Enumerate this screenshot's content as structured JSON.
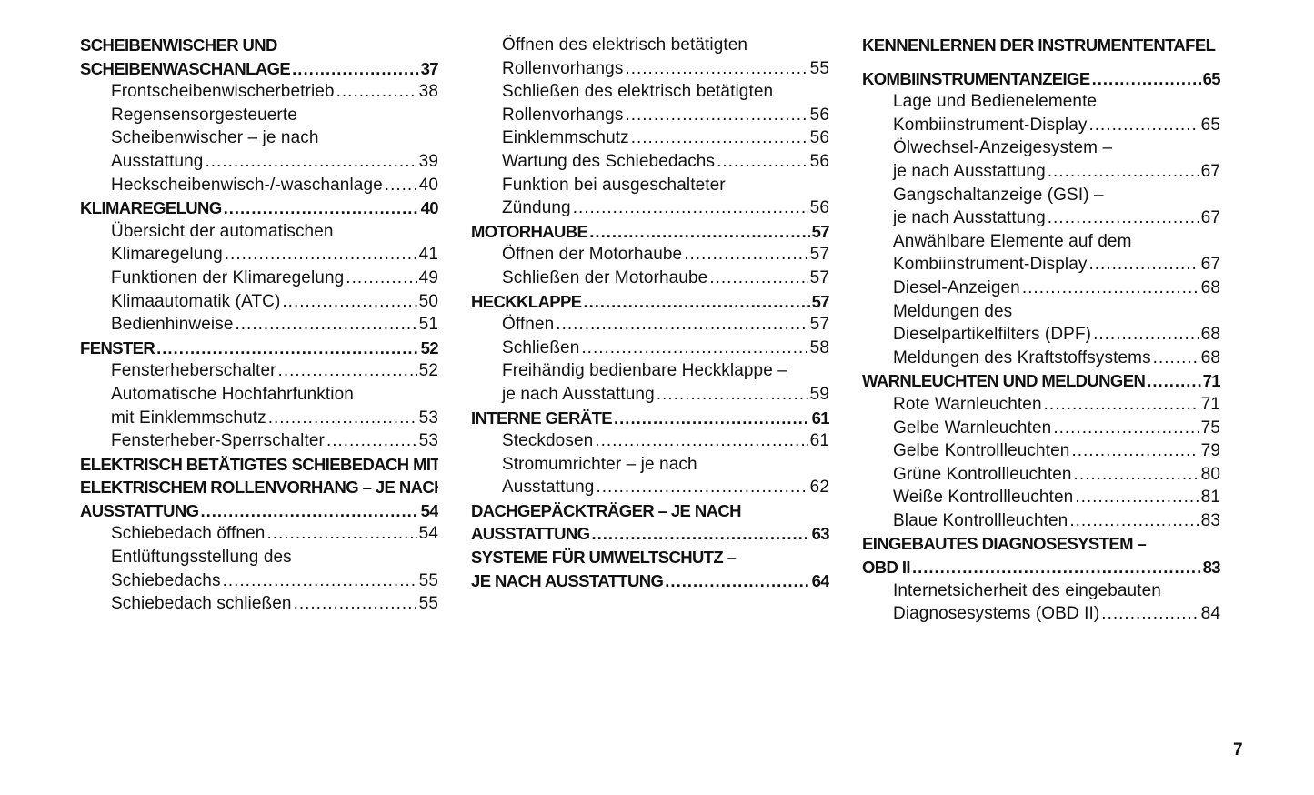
{
  "columns": [
    [
      {
        "t": "h",
        "lines": [
          "SCHEIBENWISCHER UND",
          "SCHEIBENWASCHANLAGE"
        ],
        "page": "37"
      },
      {
        "t": "e",
        "lines": [
          "Frontscheibenwischerbetrieb"
        ],
        "page": "38"
      },
      {
        "t": "e",
        "lines": [
          "Regensensorgesteuerte",
          "Scheibenwischer – je nach",
          "Ausstattung"
        ],
        "page": "39"
      },
      {
        "t": "e",
        "lines": [
          "Heckscheibenwisch-/-waschanlage"
        ],
        "page": "40"
      },
      {
        "t": "h",
        "lines": [
          "KLIMAREGELUNG"
        ],
        "page": "40"
      },
      {
        "t": "e",
        "lines": [
          "Übersicht der automatischen",
          "Klimaregelung"
        ],
        "page": "41"
      },
      {
        "t": "e",
        "lines": [
          "Funktionen der Klimaregelung"
        ],
        "page": "49"
      },
      {
        "t": "e",
        "lines": [
          "Klimaautomatik (ATC)"
        ],
        "page": "50"
      },
      {
        "t": "e",
        "lines": [
          "Bedienhinweise"
        ],
        "page": "51"
      },
      {
        "t": "h",
        "lines": [
          "FENSTER"
        ],
        "page": "52"
      },
      {
        "t": "e",
        "lines": [
          "Fensterheberschalter"
        ],
        "page": "52"
      },
      {
        "t": "e",
        "lines": [
          "Automatische Hochfahrfunktion",
          "mit Einklemmschutz"
        ],
        "page": "53"
      },
      {
        "t": "e",
        "lines": [
          "Fensterheber-Sperrschalter"
        ],
        "page": "53"
      },
      {
        "t": "h",
        "lines": [
          "ELEKTRISCH BETÄTIGTES SCHIEBEDACH MIT",
          "ELEKTRISCHEM ROLLENVORHANG – JE NACH",
          "AUSSTATTUNG"
        ],
        "page": "54"
      },
      {
        "t": "e",
        "lines": [
          "Schiebedach öffnen"
        ],
        "page": "54"
      },
      {
        "t": "e",
        "lines": [
          "Entlüftungsstellung des",
          "Schiebedachs"
        ],
        "page": "55"
      },
      {
        "t": "e",
        "lines": [
          "Schiebedach schließen"
        ],
        "page": "55"
      }
    ],
    [
      {
        "t": "e",
        "lines": [
          "Öffnen des elektrisch betätigten",
          "Rollenvorhangs"
        ],
        "page": "55"
      },
      {
        "t": "e",
        "lines": [
          "Schließen des elektrisch betätigten",
          "Rollenvorhangs"
        ],
        "page": "56"
      },
      {
        "t": "e",
        "lines": [
          "Einklemmschutz"
        ],
        "page": "56"
      },
      {
        "t": "e",
        "lines": [
          "Wartung des Schiebedachs"
        ],
        "page": "56"
      },
      {
        "t": "e",
        "lines": [
          "Funktion bei ausgeschalteter",
          "Zündung"
        ],
        "page": "56"
      },
      {
        "t": "h",
        "lines": [
          "MOTORHAUBE"
        ],
        "page": "57"
      },
      {
        "t": "e",
        "lines": [
          "Öffnen der Motorhaube"
        ],
        "page": "57"
      },
      {
        "t": "e",
        "lines": [
          "Schließen der Motorhaube"
        ],
        "page": "57"
      },
      {
        "t": "h",
        "lines": [
          "HECKKLAPPE"
        ],
        "page": "57"
      },
      {
        "t": "e",
        "lines": [
          "Öffnen"
        ],
        "page": "57"
      },
      {
        "t": "e",
        "lines": [
          "Schließen"
        ],
        "page": "58"
      },
      {
        "t": "e",
        "lines": [
          "Freihändig bedienbare Heckklappe –",
          "je nach Ausstattung"
        ],
        "page": "59"
      },
      {
        "t": "h",
        "lines": [
          "INTERNE GERÄTE"
        ],
        "page": "61"
      },
      {
        "t": "e",
        "lines": [
          "Steckdosen"
        ],
        "page": "61"
      },
      {
        "t": "e",
        "lines": [
          "Stromumrichter – je nach",
          "Ausstattung"
        ],
        "page": "62"
      },
      {
        "t": "h",
        "lines": [
          "DACHGEPÄCKTRÄGER – JE NACH",
          "AUSSTATTUNG"
        ],
        "page": "63"
      },
      {
        "t": "h",
        "lines": [
          "SYSTEME FÜR UMWELTSCHUTZ –",
          "JE NACH AUSSTATTUNG"
        ],
        "page": "64"
      }
    ],
    [
      {
        "t": "h",
        "lines": [
          "KENNENLERNEN DER INSTRUMENTENTAFEL"
        ],
        "page": "",
        "gap": true
      },
      {
        "t": "h",
        "lines": [
          "KOMBIINSTRUMENTANZEIGE"
        ],
        "page": "65"
      },
      {
        "t": "e",
        "lines": [
          "Lage und Bedienelemente",
          "Kombiinstrument-Display"
        ],
        "page": "65"
      },
      {
        "t": "e",
        "lines": [
          "Ölwechsel-Anzeigesystem –",
          "je nach Ausstattung"
        ],
        "page": "67"
      },
      {
        "t": "e",
        "lines": [
          "Gangschaltanzeige (GSI) –",
          "je nach Ausstattung"
        ],
        "page": "67"
      },
      {
        "t": "e",
        "lines": [
          "Anwählbare Elemente auf dem",
          "Kombiinstrument-Display"
        ],
        "page": "67"
      },
      {
        "t": "e",
        "lines": [
          "Diesel-Anzeigen"
        ],
        "page": "68"
      },
      {
        "t": "e",
        "lines": [
          "Meldungen des",
          "Dieselpartikelfilters (DPF)"
        ],
        "page": "68"
      },
      {
        "t": "e",
        "lines": [
          "Meldungen des Kraftstoffsystems"
        ],
        "page": "68"
      },
      {
        "t": "h",
        "lines": [
          "WARNLEUCHTEN UND MELDUNGEN"
        ],
        "page": "71"
      },
      {
        "t": "e",
        "lines": [
          "Rote Warnleuchten"
        ],
        "page": "71"
      },
      {
        "t": "e",
        "lines": [
          "Gelbe Warnleuchten"
        ],
        "page": "75"
      },
      {
        "t": "e",
        "lines": [
          "Gelbe Kontrollleuchten"
        ],
        "page": "79"
      },
      {
        "t": "e",
        "lines": [
          "Grüne Kontrollleuchten"
        ],
        "page": "80"
      },
      {
        "t": "e",
        "lines": [
          "Weiße Kontrollleuchten"
        ],
        "page": "81"
      },
      {
        "t": "e",
        "lines": [
          "Blaue Kontrollleuchten"
        ],
        "page": "83"
      },
      {
        "t": "h",
        "lines": [
          "EINGEBAUTES DIAGNOSESYSTEM –",
          "OBD II"
        ],
        "page": "83"
      },
      {
        "t": "e",
        "lines": [
          "Internetsicherheit des eingebauten",
          "Diagnosesystems (OBD II)"
        ],
        "page": "84"
      }
    ]
  ],
  "page_number": "7"
}
